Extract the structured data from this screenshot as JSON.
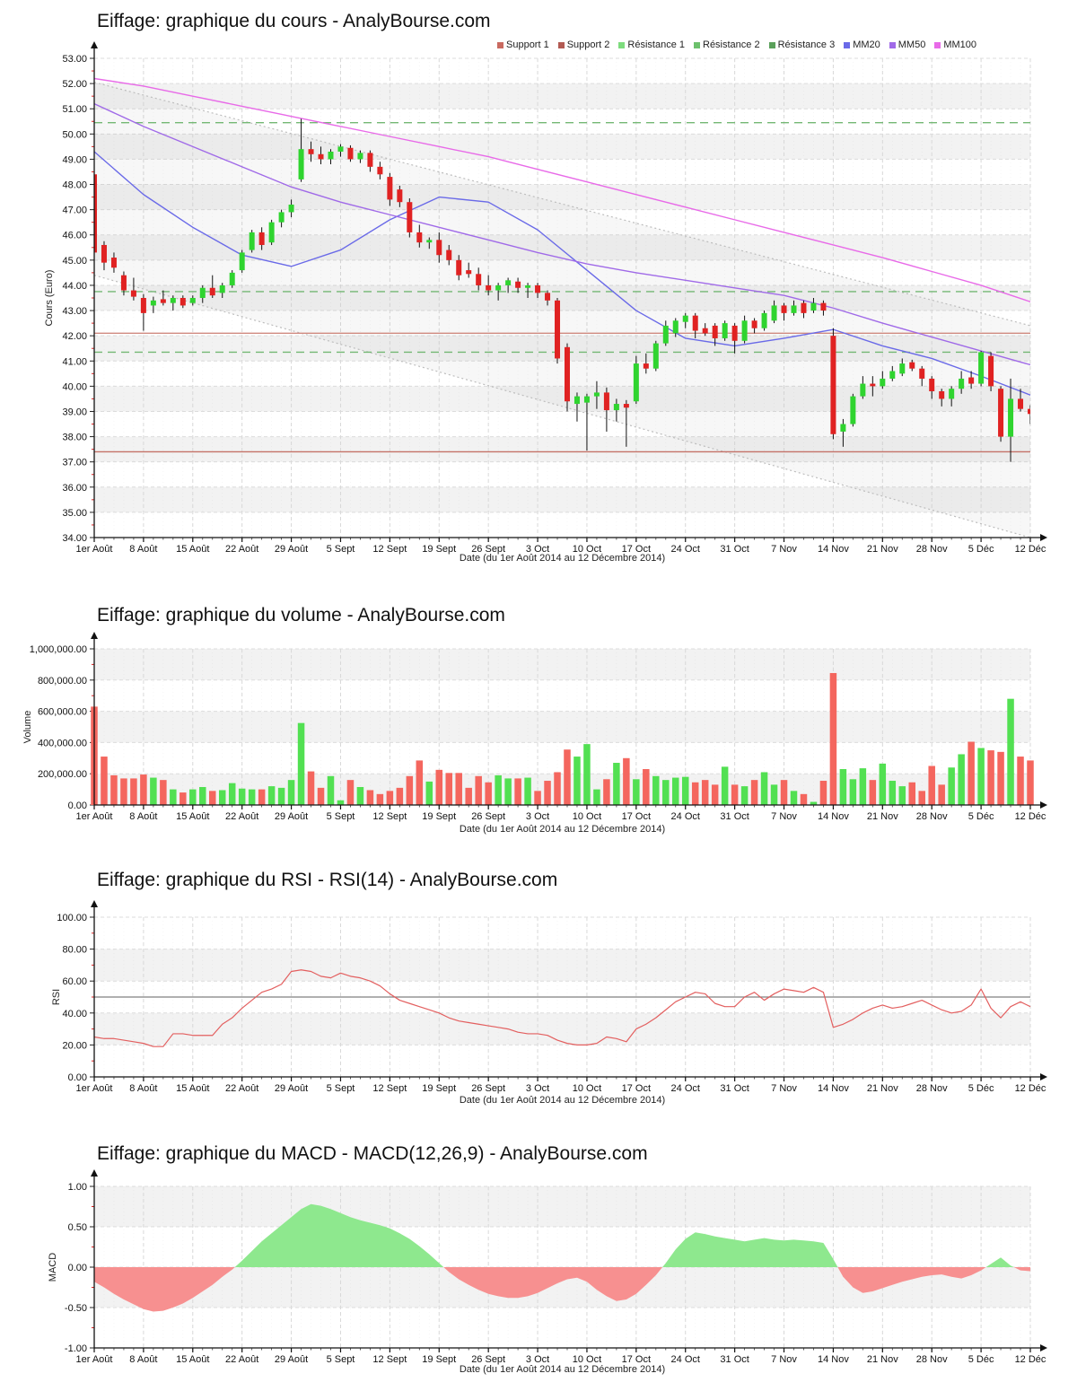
{
  "charts": {
    "price": {
      "title": "Eiffage: graphique du cours - AnalyBourse.com",
      "ylabel": "Cours (Euro)",
      "xlabel": "Date (du 1er Août 2014 au 12 Décembre 2014)"
    },
    "volume": {
      "title": "Eiffage: graphique du volume - AnalyBourse.com",
      "ylabel": "Volume",
      "xlabel": "Date (du 1er Août 2014 au 12 Décembre 2014)"
    },
    "rsi": {
      "title": "Eiffage: graphique du RSI - RSI(14) - AnalyBourse.com",
      "ylabel": "RSI",
      "xlabel": "Date (du 1er Août 2014 au 12 Décembre 2014)"
    },
    "macd": {
      "title": "Eiffage: graphique du MACD - MACD(12,26,9) - AnalyBourse.com",
      "ylabel": "MACD",
      "xlabel": "Date (du 1er Août 2014 au 12 Décembre 2014)"
    }
  },
  "legend": {
    "items": [
      {
        "label": "Support 1",
        "color": "#c96a60"
      },
      {
        "label": "Support 2",
        "color": "#b25a52"
      },
      {
        "label": "Résistance 1",
        "color": "#7ddc7d"
      },
      {
        "label": "Résistance 2",
        "color": "#6cc06c"
      },
      {
        "label": "Résistance 3",
        "color": "#5aa05a"
      },
      {
        "label": "MM20",
        "color": "#6a6ae8"
      },
      {
        "label": "MM50",
        "color": "#a06ae8"
      },
      {
        "label": "MM100",
        "color": "#e86ae8"
      }
    ]
  },
  "chart_data": [
    {
      "type": "candlestick",
      "title": "Eiffage: graphique du cours - AnalyBourse.com",
      "xlabel": "Date (du 1er Août 2014 au 12 Décembre 2014)",
      "ylabel": "Cours (Euro)",
      "x_tick_labels": [
        "1er Août",
        "8 Août",
        "15 Août",
        "22 Août",
        "29 Août",
        "5 Sept",
        "12 Sept",
        "19 Sept",
        "26 Sept",
        "3 Oct",
        "10 Oct",
        "17 Oct",
        "24 Oct",
        "31 Oct",
        "7 Nov",
        "14 Nov",
        "21 Nov",
        "28 Nov",
        "5 Déc",
        "12 Déc"
      ],
      "ylim": [
        34,
        53
      ],
      "y_tick_step": 1,
      "up_color": "#2fd42f",
      "down_color": "#e02222",
      "candles": [
        [
          48.4,
          48.5,
          44.95,
          45.3
        ],
        [
          45.6,
          45.75,
          44.6,
          44.9
        ],
        [
          45.1,
          45.3,
          44.5,
          44.7
        ],
        [
          44.4,
          44.55,
          43.6,
          43.8
        ],
        [
          43.8,
          44.3,
          43.4,
          43.55
        ],
        [
          43.5,
          43.65,
          42.2,
          42.9
        ],
        [
          43.2,
          43.55,
          42.9,
          43.4
        ],
        [
          43.45,
          43.8,
          43.2,
          43.3
        ],
        [
          43.3,
          43.6,
          43.0,
          43.5
        ],
        [
          43.5,
          43.6,
          43.1,
          43.2
        ],
        [
          43.3,
          43.6,
          43.2,
          43.5
        ],
        [
          43.5,
          44.0,
          43.3,
          43.9
        ],
        [
          43.9,
          44.4,
          43.5,
          43.6
        ],
        [
          43.7,
          44.1,
          43.5,
          44.0
        ],
        [
          44.0,
          44.6,
          43.9,
          44.5
        ],
        [
          44.6,
          45.4,
          44.5,
          45.3
        ],
        [
          45.4,
          46.2,
          45.3,
          46.1
        ],
        [
          46.1,
          46.3,
          45.4,
          45.6
        ],
        [
          45.7,
          46.6,
          45.6,
          46.5
        ],
        [
          46.5,
          47.0,
          46.3,
          46.9
        ],
        [
          46.9,
          47.4,
          46.7,
          47.2
        ],
        [
          48.2,
          50.6,
          48.1,
          49.4
        ],
        [
          49.4,
          49.7,
          48.9,
          49.2
        ],
        [
          49.2,
          49.5,
          48.8,
          49.0
        ],
        [
          49.0,
          49.4,
          48.8,
          49.3
        ],
        [
          49.3,
          49.6,
          49.1,
          49.5
        ],
        [
          49.45,
          49.55,
          48.9,
          49.0
        ],
        [
          49.0,
          49.35,
          48.85,
          49.25
        ],
        [
          49.25,
          49.35,
          48.5,
          48.7
        ],
        [
          48.7,
          48.9,
          48.2,
          48.4
        ],
        [
          48.3,
          48.45,
          47.15,
          47.4
        ],
        [
          47.8,
          47.95,
          47.1,
          47.3
        ],
        [
          47.3,
          47.45,
          45.9,
          46.1
        ],
        [
          46.1,
          46.4,
          45.5,
          45.7
        ],
        [
          45.7,
          45.9,
          45.45,
          45.8
        ],
        [
          45.8,
          46.1,
          44.9,
          45.2
        ],
        [
          45.4,
          45.6,
          44.8,
          45.0
        ],
        [
          45.0,
          45.2,
          44.2,
          44.4
        ],
        [
          44.6,
          44.9,
          44.3,
          44.45
        ],
        [
          44.45,
          44.7,
          43.8,
          44.0
        ],
        [
          44.0,
          44.4,
          43.6,
          43.8
        ],
        [
          43.8,
          44.1,
          43.4,
          44.0
        ],
        [
          44.0,
          44.3,
          43.7,
          44.2
        ],
        [
          44.15,
          44.3,
          43.7,
          43.9
        ],
        [
          43.9,
          44.1,
          43.5,
          44.0
        ],
        [
          44.0,
          44.1,
          43.5,
          43.7
        ],
        [
          43.7,
          43.8,
          43.2,
          43.4
        ],
        [
          43.4,
          43.5,
          40.9,
          41.1
        ],
        [
          41.55,
          41.7,
          39.0,
          39.4
        ],
        [
          39.3,
          39.75,
          38.6,
          39.6
        ],
        [
          39.35,
          39.7,
          37.45,
          39.6
        ],
        [
          39.6,
          40.2,
          39.1,
          39.75
        ],
        [
          39.75,
          39.95,
          38.2,
          39.05
        ],
        [
          39.05,
          39.5,
          38.6,
          39.3
        ],
        [
          39.3,
          39.45,
          37.6,
          39.15
        ],
        [
          39.4,
          41.2,
          39.3,
          40.9
        ],
        [
          40.9,
          41.3,
          40.5,
          40.7
        ],
        [
          40.7,
          41.8,
          40.6,
          41.7
        ],
        [
          41.7,
          42.6,
          41.6,
          42.4
        ],
        [
          42.1,
          42.7,
          41.95,
          42.6
        ],
        [
          42.55,
          42.9,
          42.3,
          42.8
        ],
        [
          42.8,
          42.9,
          41.9,
          42.2
        ],
        [
          42.3,
          42.5,
          42.0,
          42.1
        ],
        [
          42.4,
          42.5,
          41.6,
          41.9
        ],
        [
          41.9,
          42.6,
          41.8,
          42.5
        ],
        [
          42.4,
          42.5,
          41.3,
          41.8
        ],
        [
          41.8,
          42.8,
          41.7,
          42.6
        ],
        [
          42.6,
          42.7,
          42.1,
          42.3
        ],
        [
          42.3,
          43.0,
          42.2,
          42.9
        ],
        [
          42.6,
          43.4,
          42.5,
          43.2
        ],
        [
          43.2,
          43.3,
          42.6,
          42.9
        ],
        [
          42.9,
          43.4,
          42.8,
          43.2
        ],
        [
          43.3,
          43.4,
          42.7,
          42.9
        ],
        [
          43.0,
          43.5,
          42.9,
          43.3
        ],
        [
          43.3,
          43.4,
          42.8,
          43.0
        ],
        [
          42.0,
          42.3,
          37.9,
          38.1
        ],
        [
          38.2,
          38.7,
          37.6,
          38.5
        ],
        [
          38.5,
          39.7,
          38.4,
          39.6
        ],
        [
          39.6,
          40.4,
          39.5,
          40.1
        ],
        [
          40.1,
          40.4,
          39.6,
          40.0
        ],
        [
          40.0,
          40.6,
          39.9,
          40.3
        ],
        [
          40.3,
          40.8,
          40.2,
          40.6
        ],
        [
          40.5,
          41.1,
          40.4,
          40.9
        ],
        [
          40.95,
          41.05,
          40.6,
          40.7
        ],
        [
          40.7,
          40.8,
          40.0,
          40.3
        ],
        [
          40.3,
          40.4,
          39.5,
          39.8
        ],
        [
          39.8,
          39.9,
          39.2,
          39.5
        ],
        [
          39.5,
          40.0,
          39.2,
          39.9
        ],
        [
          39.9,
          40.6,
          39.7,
          40.3
        ],
        [
          40.35,
          40.6,
          39.9,
          40.1
        ],
        [
          40.1,
          41.4,
          40.0,
          41.35
        ],
        [
          41.2,
          41.35,
          39.8,
          40.0
        ],
        [
          39.9,
          40.0,
          37.8,
          38.0
        ],
        [
          38.0,
          40.3,
          37.0,
          39.5
        ],
        [
          39.5,
          39.9,
          39.0,
          39.1
        ],
        [
          39.1,
          39.25,
          38.5,
          38.9
        ]
      ],
      "overlays": {
        "mm20": {
          "color": "#6a6ae8",
          "weekly_values": [
            49.3,
            47.6,
            46.3,
            45.2,
            44.75,
            45.4,
            46.6,
            47.5,
            47.3,
            46.2,
            44.6,
            43.0,
            41.9,
            41.6,
            41.9,
            42.25,
            41.6,
            41.1,
            40.4,
            39.65
          ]
        },
        "mm50": {
          "color": "#a06ae8",
          "weekly_values": [
            51.2,
            50.3,
            49.5,
            48.7,
            47.9,
            47.3,
            46.8,
            46.3,
            45.8,
            45.3,
            44.85,
            44.5,
            44.2,
            43.9,
            43.6,
            43.1,
            42.5,
            41.95,
            41.4,
            40.85
          ]
        },
        "mm100": {
          "color": "#e86ae8",
          "weekly_values": [
            52.2,
            51.9,
            51.5,
            51.1,
            50.7,
            50.3,
            49.9,
            49.5,
            49.1,
            48.6,
            48.1,
            47.6,
            47.1,
            46.6,
            46.1,
            45.6,
            45.1,
            44.55,
            44.0,
            43.35
          ]
        }
      },
      "levels": {
        "support1": {
          "value": 42.1,
          "color": "#d08a80",
          "style": "solid"
        },
        "support2": {
          "value": 37.4,
          "color": "#c47067",
          "style": "solid"
        },
        "resistance1": {
          "value": 50.45,
          "color": "#74b874",
          "style": "dashed"
        },
        "resistance2": {
          "value": 43.75,
          "color": "#74b874",
          "style": "dashed"
        },
        "resistance3": {
          "value": 41.35,
          "color": "#74b874",
          "style": "dashed"
        }
      },
      "channel": {
        "color": "#bdbdbd",
        "upper_start_end": [
          52.05,
          42.4
        ],
        "lower_start_end": [
          44.4,
          34.0
        ]
      }
    },
    {
      "type": "bar",
      "title": "Eiffage: graphique du volume - AnalyBourse.com",
      "xlabel": "Date (du 1er Août 2014 au 12 Décembre 2014)",
      "ylabel": "Volume",
      "ylim": [
        0,
        1000000
      ],
      "y_tick_step": 200000,
      "up_color": "#52e052",
      "down_color": "#f4665e",
      "values": [
        630000,
        310000,
        190000,
        170000,
        170000,
        195000,
        175000,
        160000,
        100000,
        80000,
        100000,
        115000,
        90000,
        95000,
        140000,
        105000,
        100000,
        100000,
        120000,
        110000,
        160000,
        525000,
        215000,
        110000,
        185000,
        30000,
        160000,
        115000,
        95000,
        70000,
        90000,
        110000,
        185000,
        285000,
        150000,
        225000,
        205000,
        205000,
        110000,
        185000,
        145000,
        190000,
        170000,
        170000,
        175000,
        90000,
        155000,
        210000,
        355000,
        310000,
        390000,
        100000,
        165000,
        270000,
        300000,
        165000,
        230000,
        185000,
        160000,
        175000,
        180000,
        145000,
        160000,
        130000,
        245000,
        130000,
        120000,
        160000,
        210000,
        130000,
        160000,
        90000,
        70000,
        20000,
        155000,
        845000,
        230000,
        165000,
        235000,
        160000,
        265000,
        155000,
        120000,
        145000,
        90000,
        250000,
        130000,
        240000,
        325000,
        405000,
        365000,
        350000,
        340000,
        680000,
        310000,
        285000
      ]
    },
    {
      "type": "line",
      "title": "Eiffage: graphique du RSI - RSI(14) - AnalyBourse.com",
      "xlabel": "Date (du 1er Août 2014 au 12 Décembre 2014)",
      "ylabel": "RSI",
      "ylim": [
        0,
        100
      ],
      "y_tick_step": 20,
      "midline": 50,
      "line_color": "#e35f5f",
      "values": [
        25,
        24,
        24,
        23,
        22,
        21,
        19,
        19,
        27,
        27,
        26,
        26,
        26,
        33,
        37,
        43,
        48,
        53,
        55,
        58,
        66,
        67,
        66,
        63,
        62,
        65,
        63,
        62,
        60,
        57,
        52,
        48,
        46,
        44,
        42,
        40,
        37,
        35,
        34,
        33,
        32,
        31,
        30,
        28,
        27,
        27,
        26,
        23,
        21,
        20,
        20,
        21,
        25,
        24,
        22,
        30,
        33,
        37,
        42,
        47,
        50,
        53,
        52,
        46,
        44,
        44,
        50,
        53,
        48,
        52,
        55,
        54,
        53,
        56,
        53,
        31,
        33,
        36,
        40,
        43,
        45,
        43,
        44,
        46,
        48,
        45,
        42,
        40,
        41,
        45,
        55,
        43,
        37,
        44,
        47,
        44
      ]
    },
    {
      "type": "area",
      "title": "Eiffage: graphique du MACD - MACD(12,26,9) - AnalyBourse.com",
      "xlabel": "Date (du 1er Août 2014 au 12 Décembre 2014)",
      "ylabel": "MACD",
      "ylim": [
        -1,
        1
      ],
      "y_tick_step": 0.5,
      "pos_color": "#8ee88e",
      "neg_color": "#f79090",
      "values": [
        -0.18,
        -0.25,
        -0.33,
        -0.4,
        -0.46,
        -0.52,
        -0.55,
        -0.54,
        -0.5,
        -0.45,
        -0.38,
        -0.3,
        -0.22,
        -0.12,
        -0.03,
        0.08,
        0.2,
        0.32,
        0.42,
        0.52,
        0.62,
        0.72,
        0.78,
        0.76,
        0.72,
        0.67,
        0.62,
        0.58,
        0.55,
        0.52,
        0.48,
        0.42,
        0.35,
        0.26,
        0.16,
        0.05,
        -0.06,
        -0.15,
        -0.22,
        -0.28,
        -0.33,
        -0.36,
        -0.38,
        -0.38,
        -0.36,
        -0.32,
        -0.26,
        -0.2,
        -0.15,
        -0.13,
        -0.18,
        -0.28,
        -0.36,
        -0.42,
        -0.4,
        -0.33,
        -0.22,
        -0.1,
        0.05,
        0.22,
        0.35,
        0.43,
        0.41,
        0.38,
        0.36,
        0.34,
        0.32,
        0.34,
        0.36,
        0.34,
        0.33,
        0.34,
        0.33,
        0.32,
        0.3,
        0.1,
        -0.12,
        -0.25,
        -0.32,
        -0.3,
        -0.26,
        -0.22,
        -0.18,
        -0.15,
        -0.12,
        -0.1,
        -0.09,
        -0.12,
        -0.14,
        -0.1,
        -0.04,
        0.04,
        0.12,
        0.02,
        -0.04,
        -0.05
      ]
    }
  ]
}
